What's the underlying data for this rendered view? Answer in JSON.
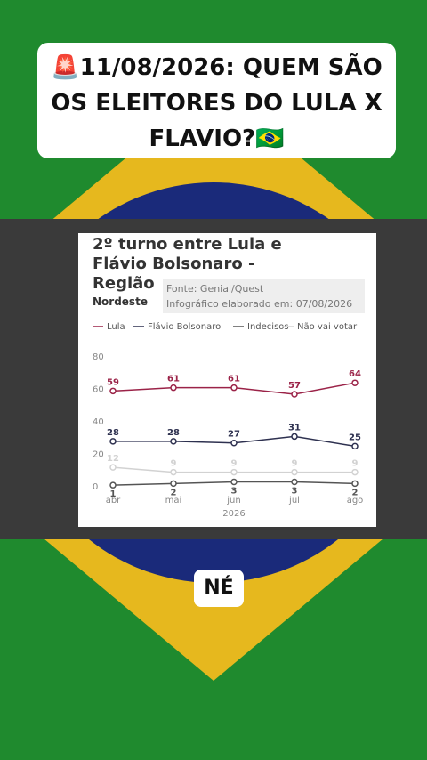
{
  "header": {
    "title": "🚨11/08/2026: QUEM SÃO OS ELEITORES DO LULA X FLAVIO?🇧🇷"
  },
  "chart_data": {
    "type": "line",
    "title": "2º turno entre Lula e Flávio Bolsonaro - Região",
    "region": "Nordeste",
    "source": "Fonte: Genial/Quest",
    "made_on": "Infográfico elaborado em: 07/08/2026",
    "categories": [
      "abr",
      "mai",
      "jun",
      "jul",
      "ago"
    ],
    "xlabel": "2026",
    "ylim": [
      0,
      80
    ],
    "yticks": [
      0,
      20,
      40,
      60,
      80
    ],
    "series": [
      {
        "name": "Lula",
        "color": "#9b2348",
        "values": [
          59,
          61,
          61,
          57,
          64
        ],
        "label_position": "above"
      },
      {
        "name": "Flávio Bolsonaro",
        "color": "#2e3150",
        "values": [
          28,
          28,
          27,
          31,
          25
        ],
        "label_position": "above"
      },
      {
        "name": "Indecisos",
        "color": "#555555",
        "values": [
          1,
          2,
          3,
          3,
          2
        ],
        "label_position": "below"
      },
      {
        "name": "Não vai votar",
        "color": "#d2d2d2",
        "values": [
          12,
          9,
          9,
          9,
          9
        ],
        "label_position": "above"
      }
    ]
  },
  "footer": {
    "badge": "NÉ"
  }
}
